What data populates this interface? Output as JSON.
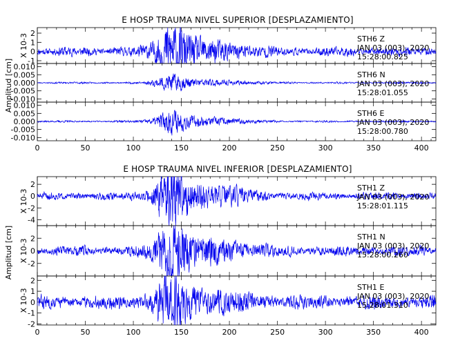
{
  "chart_data": [
    {
      "type": "line",
      "title": "E HOSP TRAUMA NIVEL SUPERIOR [DESPLAZAMIENTO]",
      "ylabel": "Amplitud [cm]",
      "xlim": [
        0,
        415
      ],
      "xticks": [
        0,
        50,
        100,
        150,
        200,
        250,
        300,
        350,
        400
      ],
      "series": [
        {
          "name": "STH6 Z",
          "date": "JAN 03 (003), 2020",
          "time": "15:28:00.825",
          "scale_label": "X 10-3",
          "ylim": [
            -1.3,
            2.6
          ],
          "yticks": [
            "-1",
            "0",
            "1",
            "2"
          ],
          "ytick_values": [
            -1,
            0,
            1,
            2
          ],
          "color": "#0000ee",
          "noise": 0.35,
          "peak": 2.2,
          "seed": 11
        },
        {
          "name": "STH6 N",
          "date": "JAN 03 (003), 2020",
          "time": "15:28:01.055",
          "scale_label": "",
          "ylim": [
            -0.012,
            0.012
          ],
          "yticks": [
            "-0.010",
            "-0.005",
            "0.000",
            "0.005",
            "0.010"
          ],
          "ytick_values": [
            -0.01,
            -0.005,
            0,
            0.005,
            0.01
          ],
          "color": "#0000ee",
          "noise": 0.0004,
          "peak": 0.004,
          "seed": 23
        },
        {
          "name": "STH6 E",
          "date": "JAN 03 (003), 2020",
          "time": "15:28:00.780",
          "scale_label": "",
          "ylim": [
            -0.012,
            0.012
          ],
          "yticks": [
            "-0.010",
            "-0.005",
            "0.000",
            "0.005",
            "0.010"
          ],
          "ytick_values": [
            -0.01,
            -0.005,
            0,
            0.005,
            0.01
          ],
          "color": "#0000ee",
          "noise": 0.0004,
          "peak": 0.0055,
          "seed": 37
        }
      ]
    },
    {
      "type": "line",
      "title": "E HOSP TRAUMA NIVEL INFERIOR [DESPLAZAMIENTO]",
      "ylabel": "Amplitud [cm]",
      "xlim": [
        0,
        415
      ],
      "xticks": [
        0,
        50,
        100,
        150,
        200,
        250,
        300,
        350,
        400
      ],
      "series": [
        {
          "name": "STH1 Z",
          "date": "JAN 03 (003), 2020",
          "time": "15:28:01.115",
          "scale_label": "X 10-3",
          "ylim": [
            -5.0,
            3.3
          ],
          "yticks": [
            "-4",
            "-2",
            "0",
            "2"
          ],
          "ytick_values": [
            -4,
            -2,
            0,
            2
          ],
          "color": "#0000ee",
          "noise": 0.45,
          "peak": 4.0,
          "seed": 51
        },
        {
          "name": "STH1 N",
          "date": "JAN 03 (003), 2020",
          "time": "15:28:00.260",
          "scale_label": "X 10-3",
          "ylim": [
            -4.0,
            4.0
          ],
          "yticks": [
            "-2",
            "0",
            "2"
          ],
          "ytick_values": [
            -2,
            0,
            2
          ],
          "color": "#0000ee",
          "noise": 0.55,
          "peak": 3.5,
          "seed": 67
        },
        {
          "name": "STH1 E",
          "date": "JAN 03 (003), 2020",
          "time": "15:28:01.310",
          "scale_label": "X 10-3",
          "ylim": [
            -2.1,
            2.4
          ],
          "yticks": [
            "-2",
            "-1",
            "0",
            "1",
            "2"
          ],
          "ytick_values": [
            -2,
            -1,
            0,
            1,
            2
          ],
          "color": "#0000ee",
          "noise": 0.45,
          "peak": 1.7,
          "seed": 83
        }
      ]
    }
  ]
}
